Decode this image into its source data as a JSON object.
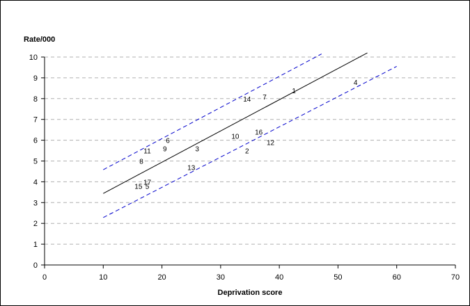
{
  "chart_data": {
    "type": "scatter",
    "title": "",
    "xlabel": "Deprivation score",
    "ylabel": "Rate/000",
    "xlim": [
      0,
      70
    ],
    "ylim": [
      0,
      10
    ],
    "xticks": [
      0,
      10,
      20,
      30,
      40,
      50,
      60,
      70
    ],
    "yticks": [
      0,
      1,
      2,
      3,
      4,
      5,
      6,
      7,
      8,
      9,
      10
    ],
    "grid": "horizontal-dashed",
    "legend": "none",
    "points": [
      {
        "label": "1",
        "x": 42.5,
        "y": 8.4
      },
      {
        "label": "2",
        "x": 34.5,
        "y": 5.5
      },
      {
        "label": "3",
        "x": 26.0,
        "y": 5.6
      },
      {
        "label": "4",
        "x": 53.0,
        "y": 8.8
      },
      {
        "label": "5",
        "x": 17.5,
        "y": 3.8
      },
      {
        "label": "6",
        "x": 21.0,
        "y": 6.0
      },
      {
        "label": "7",
        "x": 37.5,
        "y": 8.1
      },
      {
        "label": "8",
        "x": 16.5,
        "y": 5.0
      },
      {
        "label": "9",
        "x": 20.5,
        "y": 5.6
      },
      {
        "label": "10",
        "x": 32.5,
        "y": 6.2
      },
      {
        "label": "11",
        "x": 17.5,
        "y": 5.5
      },
      {
        "label": "12",
        "x": 38.5,
        "y": 5.9
      },
      {
        "label": "13",
        "x": 25.0,
        "y": 4.7
      },
      {
        "label": "14",
        "x": 34.5,
        "y": 8.0
      },
      {
        "label": "15",
        "x": 16.0,
        "y": 3.8
      },
      {
        "label": "16",
        "x": 36.5,
        "y": 6.4
      },
      {
        "label": "17",
        "x": 17.5,
        "y": 4.0
      }
    ],
    "lines": [
      {
        "style": "solid",
        "color": "#000000",
        "x": [
          10,
          55
        ],
        "y": [
          3.44,
          10.2
        ]
      },
      {
        "style": "dashed",
        "color": "#0000cc",
        "x": [
          10,
          47.2
        ],
        "y": [
          4.58,
          10.15
        ]
      },
      {
        "style": "dashed",
        "color": "#0000cc",
        "x": [
          10,
          60
        ],
        "y": [
          2.28,
          9.55
        ]
      }
    ]
  }
}
